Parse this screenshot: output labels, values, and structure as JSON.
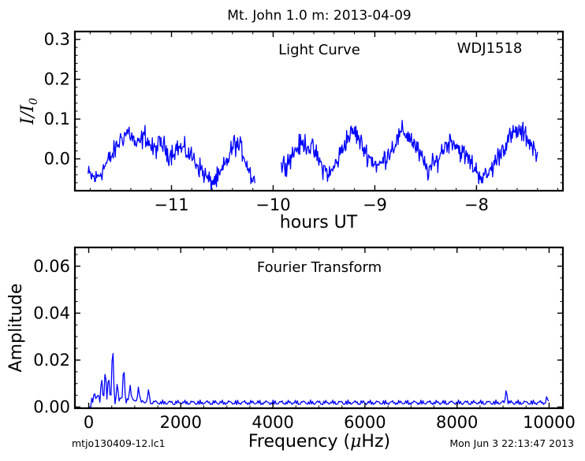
{
  "figure": {
    "title": "Mt. John 1.0 m:  2013-04-09",
    "footer_left": "mtjo130409-12.lc1",
    "footer_right": "Mon Jun  3 22:13:47 2013",
    "line_color": "#0000ff",
    "axis_color": "#000000"
  },
  "chart_data": [
    {
      "type": "line",
      "name": "light-curve",
      "annotation_center": "Light Curve",
      "annotation_right": "WDJ1518",
      "xlabel": "hours UT",
      "ylabel_main": "I/I",
      "ylabel_sub": "0",
      "xlim": [
        -11.95,
        -7.15
      ],
      "ylim": [
        -0.08,
        0.32
      ],
      "xticks": [
        -11,
        -10,
        -9,
        -8
      ],
      "xtick_labels": [
        "−11",
        "−10",
        "−9",
        "−8"
      ],
      "yticks": [
        0.0,
        0.1,
        0.2,
        0.3
      ],
      "ytick_labels": [
        "0.0",
        "0.1",
        "0.2",
        "0.3"
      ],
      "segments": [
        {
          "x_start": -11.82,
          "x_end": -10.18,
          "anchors_x": [
            -11.82,
            -11.74,
            -11.66,
            -11.58,
            -11.5,
            -11.42,
            -11.34,
            -11.26,
            -11.18,
            -11.1,
            -11.02,
            -10.94,
            -10.86,
            -10.78,
            -10.7,
            -10.62,
            -10.54,
            -10.46,
            -10.38,
            -10.3,
            -10.22,
            -10.18
          ],
          "anchors_y": [
            -0.04,
            -0.05,
            -0.02,
            0.01,
            0.05,
            0.07,
            0.03,
            0.06,
            0.02,
            0.04,
            0.01,
            0.03,
            0.02,
            0.0,
            -0.03,
            -0.06,
            -0.05,
            -0.01,
            0.04,
            0.02,
            -0.04,
            -0.05
          ]
        },
        {
          "x_start": -9.92,
          "x_end": -7.4,
          "anchors_x": [
            -9.92,
            -9.84,
            -9.76,
            -9.68,
            -9.6,
            -9.52,
            -9.44,
            -9.36,
            -9.28,
            -9.2,
            -9.12,
            -9.04,
            -8.96,
            -8.88,
            -8.8,
            -8.72,
            -8.64,
            -8.56,
            -8.48,
            -8.4,
            -8.32,
            -8.24,
            -8.16,
            -8.08,
            -8.0,
            -7.92,
            -7.84,
            -7.76,
            -7.68,
            -7.6,
            -7.52,
            -7.44,
            -7.4
          ],
          "anchors_y": [
            -0.02,
            0.0,
            0.03,
            0.04,
            0.02,
            -0.02,
            -0.04,
            0.0,
            0.05,
            0.07,
            0.03,
            0.0,
            -0.02,
            0.01,
            0.04,
            0.07,
            0.05,
            0.01,
            -0.03,
            -0.01,
            0.03,
            0.05,
            0.02,
            0.0,
            -0.03,
            -0.05,
            -0.02,
            0.02,
            0.05,
            0.07,
            0.06,
            0.03,
            0.0
          ]
        }
      ]
    },
    {
      "type": "line",
      "name": "fourier-transform",
      "annotation_center": "Fourier Transform",
      "xlabel_prefix": "Frequency (",
      "xlabel_mu": "μ",
      "xlabel_suffix": "Hz)",
      "ylabel": "Amplitude",
      "xlim": [
        -300,
        10300
      ],
      "ylim": [
        -0.0005,
        0.068
      ],
      "xticks": [
        0,
        2000,
        4000,
        6000,
        8000,
        10000
      ],
      "xtick_labels": [
        "0",
        "2000",
        "4000",
        "6000",
        "8000",
        "10000"
      ],
      "yticks": [
        0.0,
        0.02,
        0.04,
        0.06
      ],
      "ytick_labels": [
        "0.00",
        "0.02",
        "0.04",
        "0.06"
      ],
      "peaks": [
        {
          "frequency": 120,
          "amplitude": 0.003
        },
        {
          "frequency": 280,
          "amplitude": 0.011
        },
        {
          "frequency": 360,
          "amplitude": 0.014
        },
        {
          "frequency": 430,
          "amplitude": 0.012
        },
        {
          "frequency": 520,
          "amplitude": 0.024
        },
        {
          "frequency": 620,
          "amplitude": 0.009
        },
        {
          "frequency": 760,
          "amplitude": 0.016
        },
        {
          "frequency": 900,
          "amplitude": 0.009
        },
        {
          "frequency": 1080,
          "amplitude": 0.008
        },
        {
          "frequency": 1300,
          "amplitude": 0.007
        },
        {
          "frequency": 9070,
          "amplitude": 0.007
        },
        {
          "frequency": 9950,
          "amplitude": 0.004
        }
      ],
      "noise_level": 0.003
    }
  ]
}
